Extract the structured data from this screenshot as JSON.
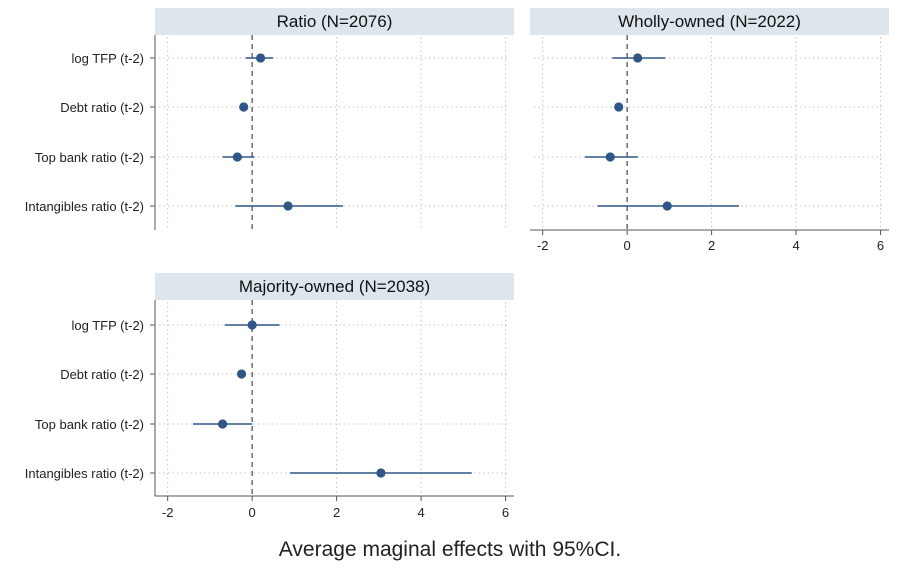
{
  "caption": "Average maginal effects with 95%CI.",
  "chart_data": [
    {
      "type": "coefficient-plot",
      "title": "Ratio (N=2076)",
      "categories": [
        "log TFP (t-2)",
        "Debt ratio (t-2)",
        "Top bank ratio (t-2)",
        "Intangibles ratio (t-2)"
      ],
      "estimates": [
        0.2,
        -0.2,
        -0.35,
        0.85
      ],
      "ci_lower": [
        -0.15,
        -0.25,
        -0.7,
        -0.4
      ],
      "ci_upper": [
        0.5,
        -0.15,
        0.05,
        2.15
      ],
      "xlim": [
        -2.3,
        6.2
      ],
      "xticks": [
        -2,
        0,
        2,
        4,
        6
      ],
      "reference_line": 0,
      "x_axis_shown": false,
      "grid": true
    },
    {
      "type": "coefficient-plot",
      "title": "Wholly-owned  (N=2022)",
      "categories": [
        "log TFP (t-2)",
        "Debt ratio (t-2)",
        "Top bank ratio (t-2)",
        "Intangibles ratio (t-2)"
      ],
      "estimates": [
        0.25,
        -0.2,
        -0.4,
        0.95
      ],
      "ci_lower": [
        -0.35,
        -0.25,
        -1.0,
        -0.7
      ],
      "ci_upper": [
        0.9,
        -0.15,
        0.25,
        2.65
      ],
      "xlim": [
        -2.3,
        6.2
      ],
      "xticks": [
        -2,
        0,
        2,
        4,
        6
      ],
      "reference_line": 0,
      "x_axis_shown": true,
      "grid": true
    },
    {
      "type": "coefficient-plot",
      "title": "Majority-owned  (N=2038)",
      "categories": [
        "log TFP (t-2)",
        "Debt ratio (t-2)",
        "Top bank ratio (t-2)",
        "Intangibles ratio (t-2)"
      ],
      "estimates": [
        0.0,
        -0.25,
        -0.7,
        3.05
      ],
      "ci_lower": [
        -0.65,
        -0.3,
        -1.4,
        0.9
      ],
      "ci_upper": [
        0.65,
        -0.2,
        0.0,
        5.2
      ],
      "xlim": [
        -2.3,
        6.2
      ],
      "xticks": [
        -2,
        0,
        2,
        4,
        6
      ],
      "reference_line": 0,
      "x_axis_shown": true,
      "grid": true
    }
  ]
}
